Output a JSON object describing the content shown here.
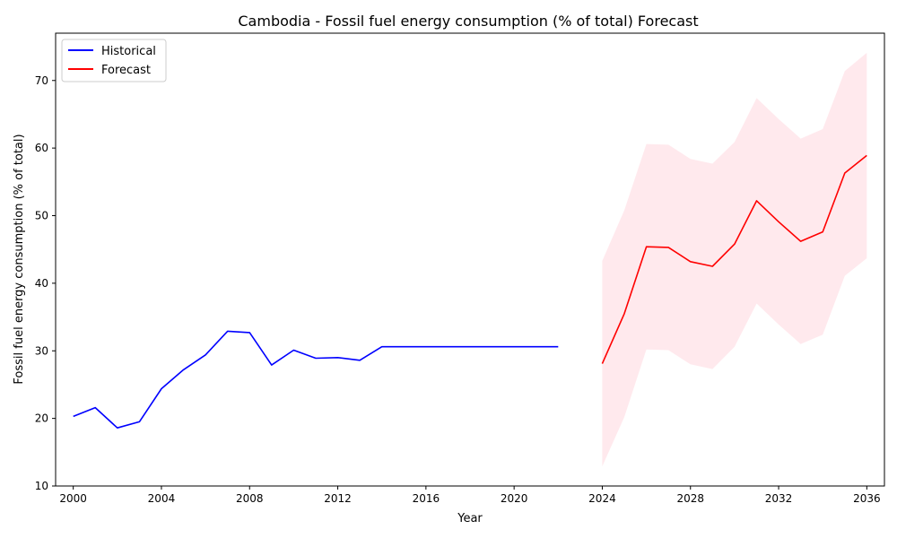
{
  "chart_data": {
    "type": "line",
    "title": "Cambodia - Fossil fuel energy consumption (% of total) Forecast",
    "xlabel": "Year",
    "ylabel": "Fossil fuel energy consumption (% of total)",
    "xlim": [
      1999.2,
      2036.8
    ],
    "ylim": [
      10,
      77
    ],
    "x_ticks": [
      2000,
      2004,
      2008,
      2012,
      2016,
      2020,
      2024,
      2028,
      2032,
      2036
    ],
    "y_ticks": [
      10,
      20,
      30,
      40,
      50,
      60,
      70
    ],
    "grid": false,
    "legend_position": "top-left",
    "series": [
      {
        "name": "Historical",
        "color": "#0000ff",
        "x": [
          2000,
          2001,
          2002,
          2003,
          2004,
          2005,
          2006,
          2007,
          2008,
          2009,
          2010,
          2011,
          2012,
          2013,
          2014,
          2015,
          2016,
          2017,
          2018,
          2019,
          2020,
          2021,
          2022
        ],
        "y": [
          20.3,
          21.6,
          18.6,
          19.5,
          24.4,
          27.2,
          29.4,
          32.9,
          32.7,
          27.9,
          30.1,
          28.9,
          29.0,
          28.6,
          30.6,
          30.6,
          30.6,
          30.6,
          30.6,
          30.6,
          30.6,
          30.6,
          30.6
        ]
      },
      {
        "name": "Forecast",
        "color": "#ff0000",
        "x": [
          2024,
          2025,
          2026,
          2027,
          2028,
          2029,
          2030,
          2031,
          2032,
          2033,
          2034,
          2035,
          2036
        ],
        "y": [
          28.1,
          35.5,
          45.4,
          45.3,
          43.2,
          42.5,
          45.8,
          52.2,
          49.1,
          46.2,
          47.6,
          56.3,
          58.9
        ]
      }
    ],
    "confidence_band": {
      "color": "#ffc0cb",
      "x": [
        2024,
        2025,
        2026,
        2027,
        2028,
        2029,
        2030,
        2031,
        2032,
        2033,
        2034,
        2035,
        2036
      ],
      "upper": [
        43.3,
        50.8,
        60.6,
        60.5,
        58.4,
        57.7,
        60.9,
        67.4,
        64.3,
        61.4,
        62.8,
        71.4,
        74.1
      ],
      "lower": [
        12.9,
        20.2,
        30.2,
        30.1,
        28.0,
        27.3,
        30.6,
        37.0,
        33.9,
        31.0,
        32.4,
        41.1,
        43.7
      ]
    }
  }
}
